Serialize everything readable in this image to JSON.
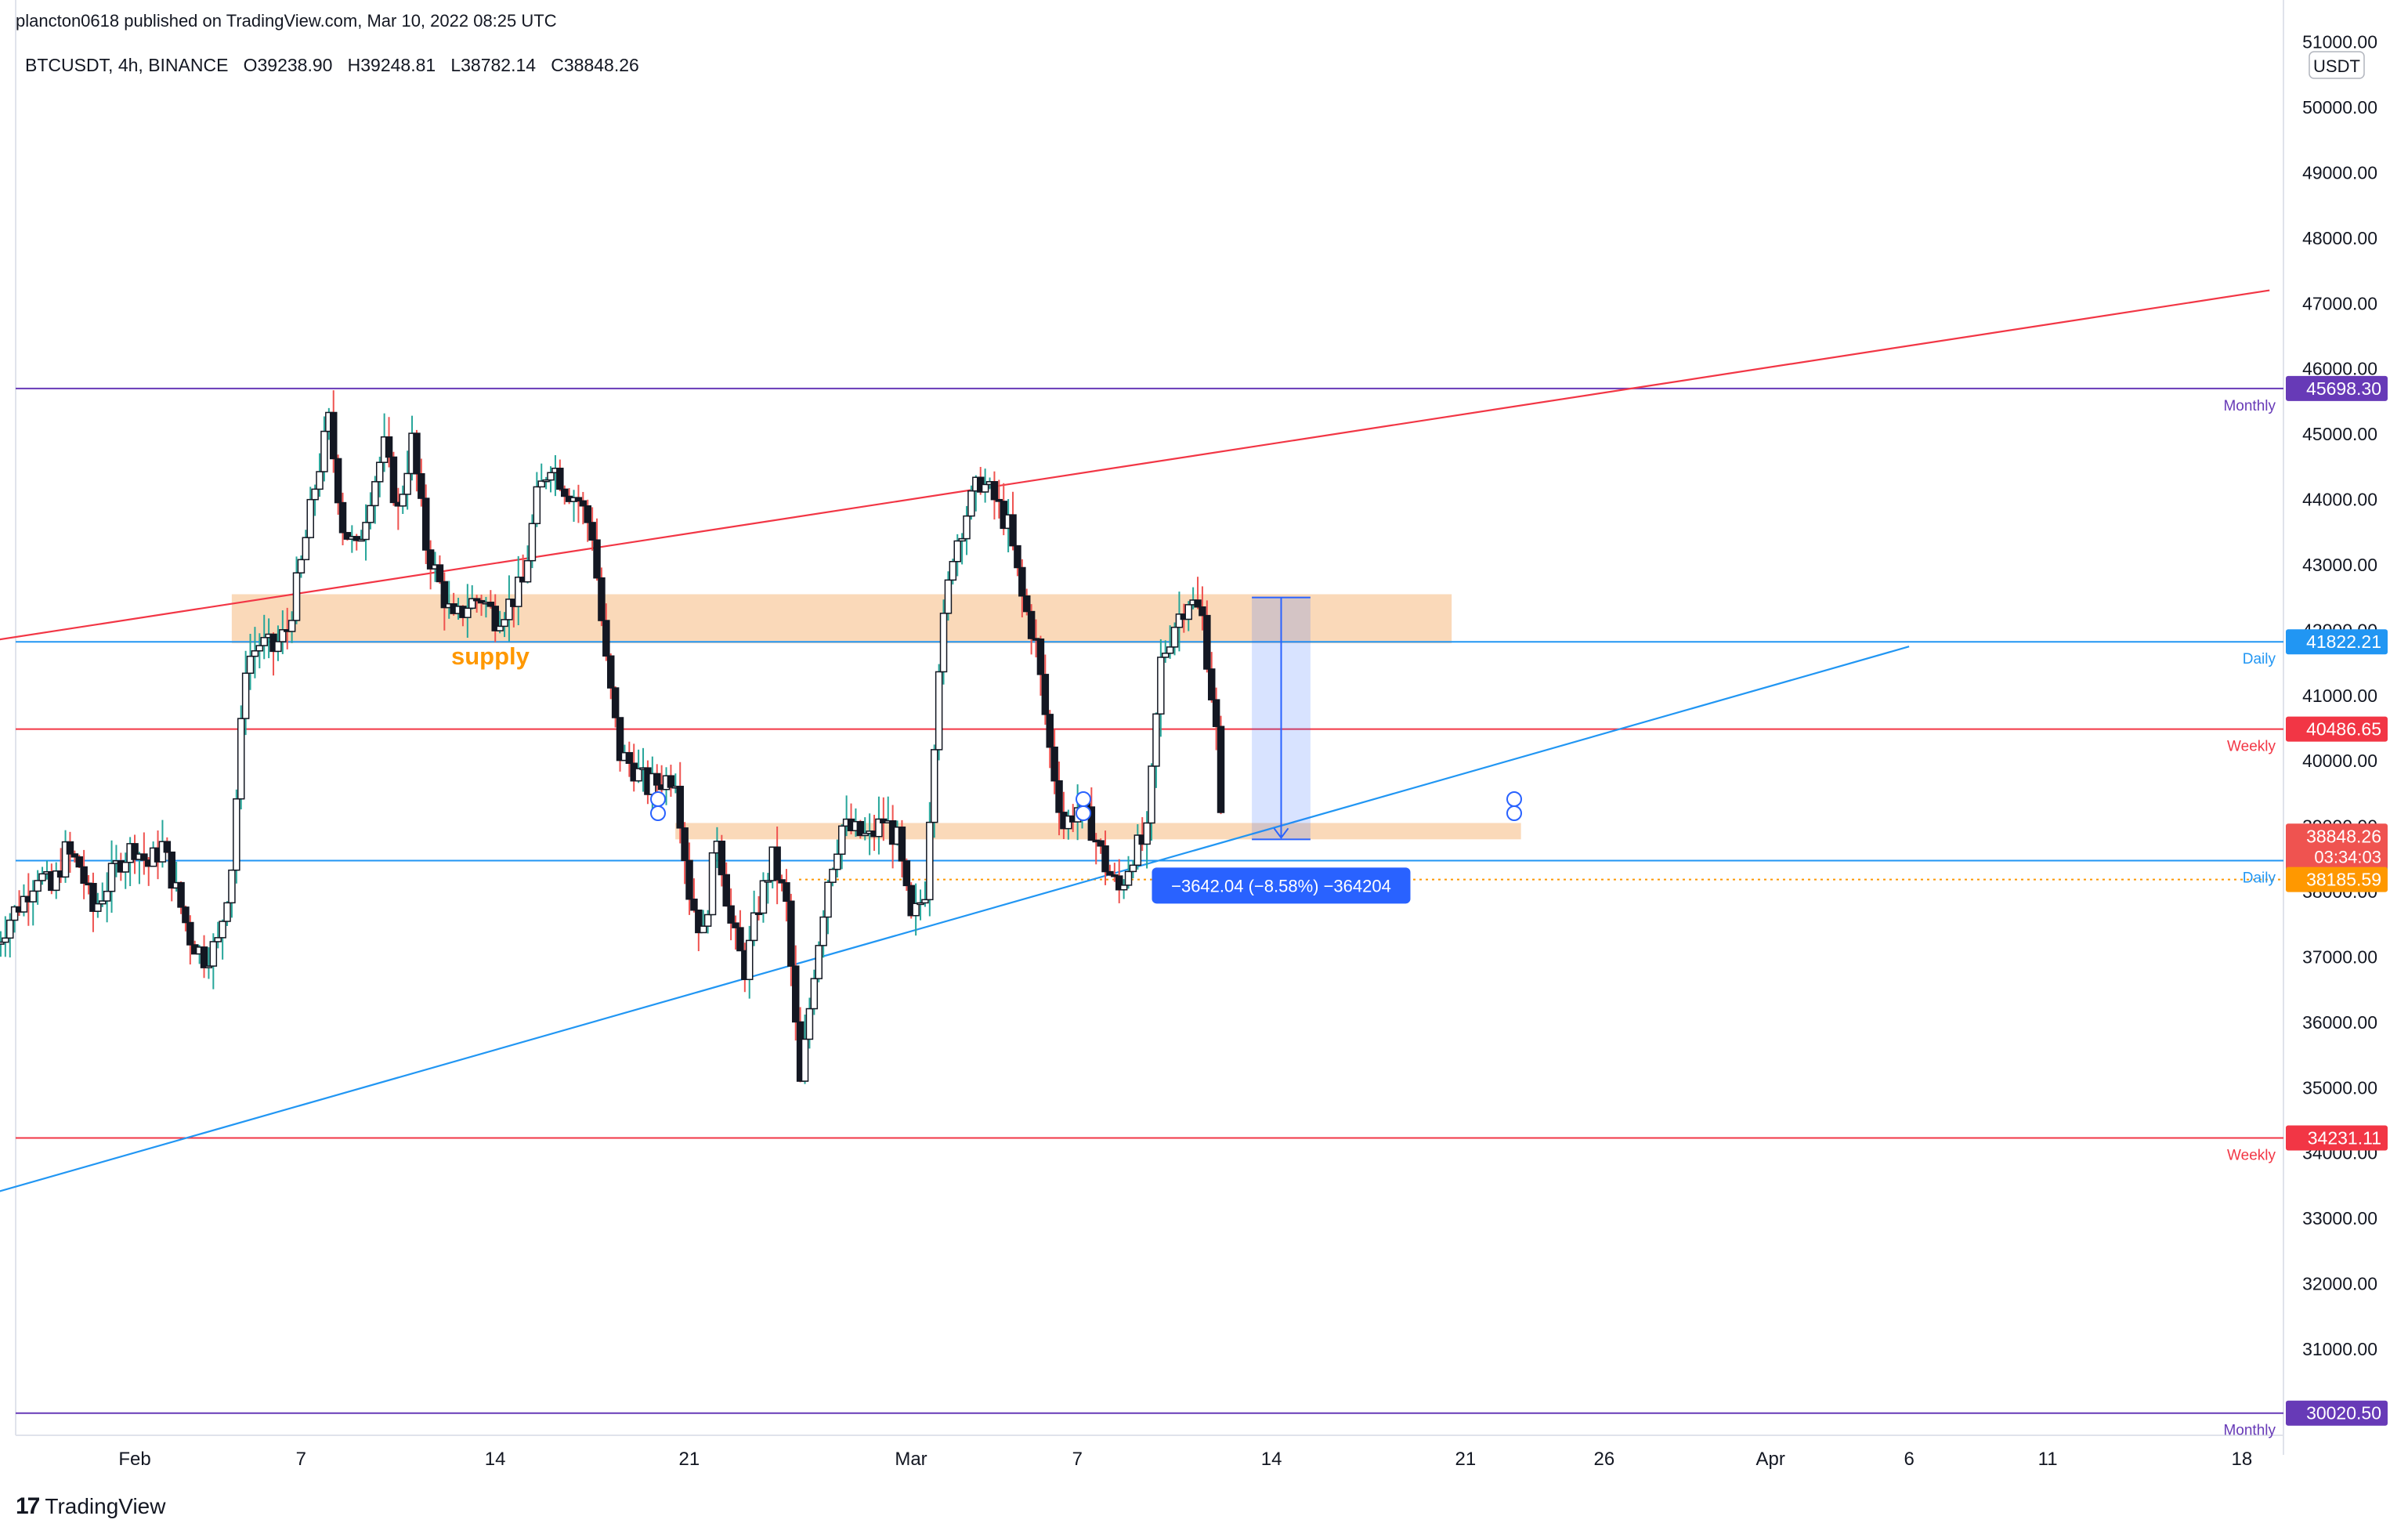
{
  "published": "plancton0618 published on TradingView.com, Mar 10, 2022 08:25 UTC",
  "symbol": "BTCUSDT, 4h, BINANCE",
  "ohlc": {
    "o": "O39238.90",
    "h": "H39248.81",
    "l": "L38782.14",
    "c": "C38848.26"
  },
  "branding": {
    "logo": "TradingView",
    "logo_mark": "17"
  },
  "currency": "USDT",
  "colors": {
    "up": "#26a69a",
    "down": "#ef5350",
    "body": "#131722",
    "supply_zone": "#f7c08a",
    "red_line": "#f23645",
    "blue_line": "#2962ff",
    "purple_line": "#673ab7",
    "trend_blue": "#2196f3"
  },
  "chart_data": {
    "type": "candlestick",
    "title": "BTCUSDT, 4h, BINANCE",
    "ylim": [
      30000,
      51000
    ],
    "y_ticks": [
      "31000.00",
      "32000.00",
      "33000.00",
      "34000.00",
      "35000.00",
      "36000.00",
      "37000.00",
      "38000.00",
      "39000.00",
      "40000.00",
      "41000.00",
      "42000.00",
      "43000.00",
      "44000.00",
      "45000.00",
      "46000.00",
      "47000.00",
      "48000.00",
      "49000.00",
      "50000.00",
      "51000.00"
    ],
    "x_ticks": [
      "Feb",
      "7",
      "14",
      "21",
      "Mar",
      "7",
      "14",
      "21",
      "26",
      "Apr",
      "6",
      "11",
      "18"
    ],
    "x_tick_days": [
      32,
      38,
      45,
      52,
      60,
      66,
      73,
      80,
      85,
      91,
      96,
      101,
      108
    ],
    "series_anchors_day_close": [
      [
        27,
        37200
      ],
      [
        27.5,
        37600
      ],
      [
        28,
        37900
      ],
      [
        28.5,
        38300
      ],
      [
        29,
        38000
      ],
      [
        29.5,
        38600
      ],
      [
        30,
        38400
      ],
      [
        30.5,
        37700
      ],
      [
        31,
        38100
      ],
      [
        31.5,
        38500
      ],
      [
        32,
        38700
      ],
      [
        32.5,
        38400
      ],
      [
        33,
        38700
      ],
      [
        33.5,
        38000
      ],
      [
        34,
        37300
      ],
      [
        34.5,
        37000
      ],
      [
        35,
        37200
      ],
      [
        35.5,
        38400
      ],
      [
        36,
        41500
      ],
      [
        36.5,
        41800
      ],
      [
        37,
        41700
      ],
      [
        37.5,
        42000
      ],
      [
        38,
        43000
      ],
      [
        38.5,
        44200
      ],
      [
        39,
        45200
      ],
      [
        39.5,
        43600
      ],
      [
        40,
        43200
      ],
      [
        40.5,
        44100
      ],
      [
        41,
        44800
      ],
      [
        41.5,
        43800
      ],
      [
        42,
        44900
      ],
      [
        42.5,
        43300
      ],
      [
        43,
        42700
      ],
      [
        43.5,
        42100
      ],
      [
        44,
        42400
      ],
      [
        44.5,
        42500
      ],
      [
        45,
        42200
      ],
      [
        45.5,
        42400
      ],
      [
        46,
        42700
      ],
      [
        46.5,
        44000
      ],
      [
        47,
        44600
      ],
      [
        47.5,
        44200
      ],
      [
        48,
        44000
      ],
      [
        48.5,
        43500
      ],
      [
        49,
        41500
      ],
      [
        49.5,
        40100
      ],
      [
        50,
        39900
      ],
      [
        50.5,
        39600
      ],
      [
        51,
        39700
      ],
      [
        51.5,
        39800
      ],
      [
        52,
        38000
      ],
      [
        52.5,
        37300
      ],
      [
        53,
        38900
      ],
      [
        53.5,
        37500
      ],
      [
        54,
        36800
      ],
      [
        54.5,
        37800
      ],
      [
        55,
        38500
      ],
      [
        55.5,
        37800
      ],
      [
        56,
        35000
      ],
      [
        56.5,
        36800
      ],
      [
        57,
        38200
      ],
      [
        57.5,
        39000
      ],
      [
        58,
        38900
      ],
      [
        58.5,
        38800
      ],
      [
        59,
        39100
      ],
      [
        59.5,
        38800
      ],
      [
        60,
        37500
      ],
      [
        60.5,
        38000
      ],
      [
        61,
        41500
      ],
      [
        61.5,
        43200
      ],
      [
        62,
        43800
      ],
      [
        62.5,
        44300
      ],
      [
        63,
        44000
      ],
      [
        63.5,
        43600
      ],
      [
        64,
        42500
      ],
      [
        64.5,
        41800
      ],
      [
        65,
        40200
      ],
      [
        65.5,
        39000
      ],
      [
        66,
        39300
      ],
      [
        66.5,
        39000
      ],
      [
        67,
        38400
      ],
      [
        67.5,
        38000
      ],
      [
        68,
        38600
      ],
      [
        68.5,
        38800
      ],
      [
        69,
        41500
      ],
      [
        69.5,
        42100
      ],
      [
        70,
        42500
      ],
      [
        70.5,
        42200
      ],
      [
        71,
        40500
      ],
      [
        71.2,
        38850
      ]
    ],
    "candle_range_days": [
      27,
      71.2
    ],
    "candle_spacing_days": 0.1667,
    "markers": [
      {
        "label": "supply",
        "type": "zone",
        "from_day": 35.5,
        "to_day": 79.5,
        "low": 41800,
        "high": 42550
      },
      {
        "label": "",
        "type": "zone",
        "from_day": 51.5,
        "to_day": 82,
        "low": 38800,
        "high": 39050
      }
    ],
    "hlines": [
      {
        "value": 45698.3,
        "label": "45698.30",
        "tag": "Monthly",
        "color": "#673ab7"
      },
      {
        "value": 41822.21,
        "label": "41822.21",
        "tag": "Daily",
        "color": "#2196f3"
      },
      {
        "value": 40486.65,
        "label": "40486.65",
        "tag": "Weekly",
        "color": "#f23645"
      },
      {
        "value": 38474.43,
        "label": "38474.43",
        "tag": "Daily",
        "color": "#2196f3"
      },
      {
        "value": 34231.11,
        "label": "34231.11",
        "tag": "Weekly",
        "color": "#f23645"
      },
      {
        "value": 30020.5,
        "label": "30020.50",
        "tag": "Monthly",
        "color": "#673ab7"
      }
    ],
    "price_tags": [
      {
        "value": 38848.26,
        "label": "38848.26",
        "sub": "03:34:03",
        "color": "#ef5350"
      },
      {
        "value": 38185.59,
        "label": "38185.59",
        "color": "#ff9800"
      }
    ],
    "dotted_level": 38185.59,
    "trendlines": [
      {
        "color": "#f23645",
        "from": [
          27,
          41850
        ],
        "to": [
          109,
          47200
        ]
      },
      {
        "color": "#2196f3",
        "from": [
          27,
          33400
        ],
        "to": [
          96,
          41750
        ]
      }
    ],
    "measure": {
      "from_day": 73,
      "to_day": 73.7,
      "top": 42500,
      "bottom": 38800,
      "label": "−3642.04 (−8.58%) −364204"
    },
    "zone_label": "supply"
  }
}
